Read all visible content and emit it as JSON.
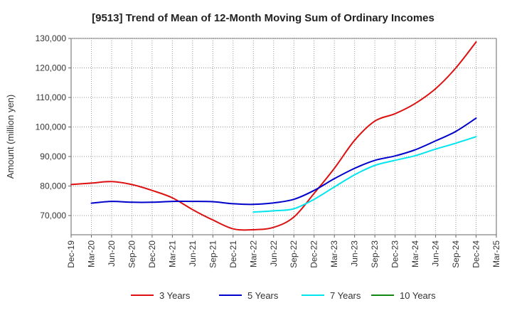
{
  "chart_data": {
    "type": "line",
    "title": "[9513]  Trend of Mean of 12-Month Moving Sum of Ordinary Incomes",
    "xlabel": "",
    "ylabel": "Amount (million yen)",
    "ylim": [
      63500,
      130000
    ],
    "yticks": [
      70000,
      80000,
      90000,
      100000,
      110000,
      120000,
      130000
    ],
    "ytick_labels": [
      "70,000",
      "80,000",
      "90,000",
      "100,000",
      "110,000",
      "120,000",
      "130,000"
    ],
    "x_categories": [
      "Dec-19",
      "Mar-20",
      "Jun-20",
      "Sep-20",
      "Dec-20",
      "Mar-21",
      "Jun-21",
      "Sep-21",
      "Dec-21",
      "Mar-22",
      "Jun-22",
      "Sep-22",
      "Dec-22",
      "Mar-23",
      "Jun-23",
      "Sep-23",
      "Dec-23",
      "Mar-24",
      "Jun-24",
      "Sep-24",
      "Dec-24",
      "Mar-25"
    ],
    "grid": true,
    "series": [
      {
        "name": "3 Years",
        "color": "#dd1111",
        "x": [
          0,
          1,
          2,
          3,
          4,
          5,
          6,
          7,
          8,
          9,
          10,
          11,
          12,
          13,
          14,
          15,
          16,
          17,
          18,
          19,
          20
        ],
        "values": [
          80500,
          81000,
          81500,
          80500,
          78500,
          76000,
          72000,
          68500,
          65500,
          65200,
          66000,
          69500,
          77500,
          86000,
          95500,
          102000,
          104500,
          108000,
          113000,
          120000,
          128800
        ]
      },
      {
        "name": "5 Years",
        "color": "#0000cc",
        "x": [
          1,
          2,
          3,
          4,
          5,
          6,
          7,
          8,
          9,
          10,
          11,
          12,
          13,
          14,
          15,
          16,
          17,
          18,
          19,
          20
        ],
        "values": [
          74200,
          74800,
          74500,
          74500,
          74800,
          74800,
          74700,
          74000,
          73800,
          74300,
          75500,
          78500,
          82500,
          86000,
          88700,
          90200,
          92300,
          95300,
          98500,
          103000
        ]
      },
      {
        "name": "7 Years",
        "color": "#00e5ee",
        "x": [
          9,
          10,
          11,
          12,
          13,
          14,
          15,
          16,
          17,
          18,
          19,
          20
        ],
        "values": [
          71200,
          71600,
          72300,
          75500,
          79700,
          83800,
          87000,
          88700,
          90300,
          92500,
          94500,
          96700
        ]
      },
      {
        "name": "10 Years",
        "color": "#118811",
        "x": [],
        "values": []
      }
    ]
  }
}
